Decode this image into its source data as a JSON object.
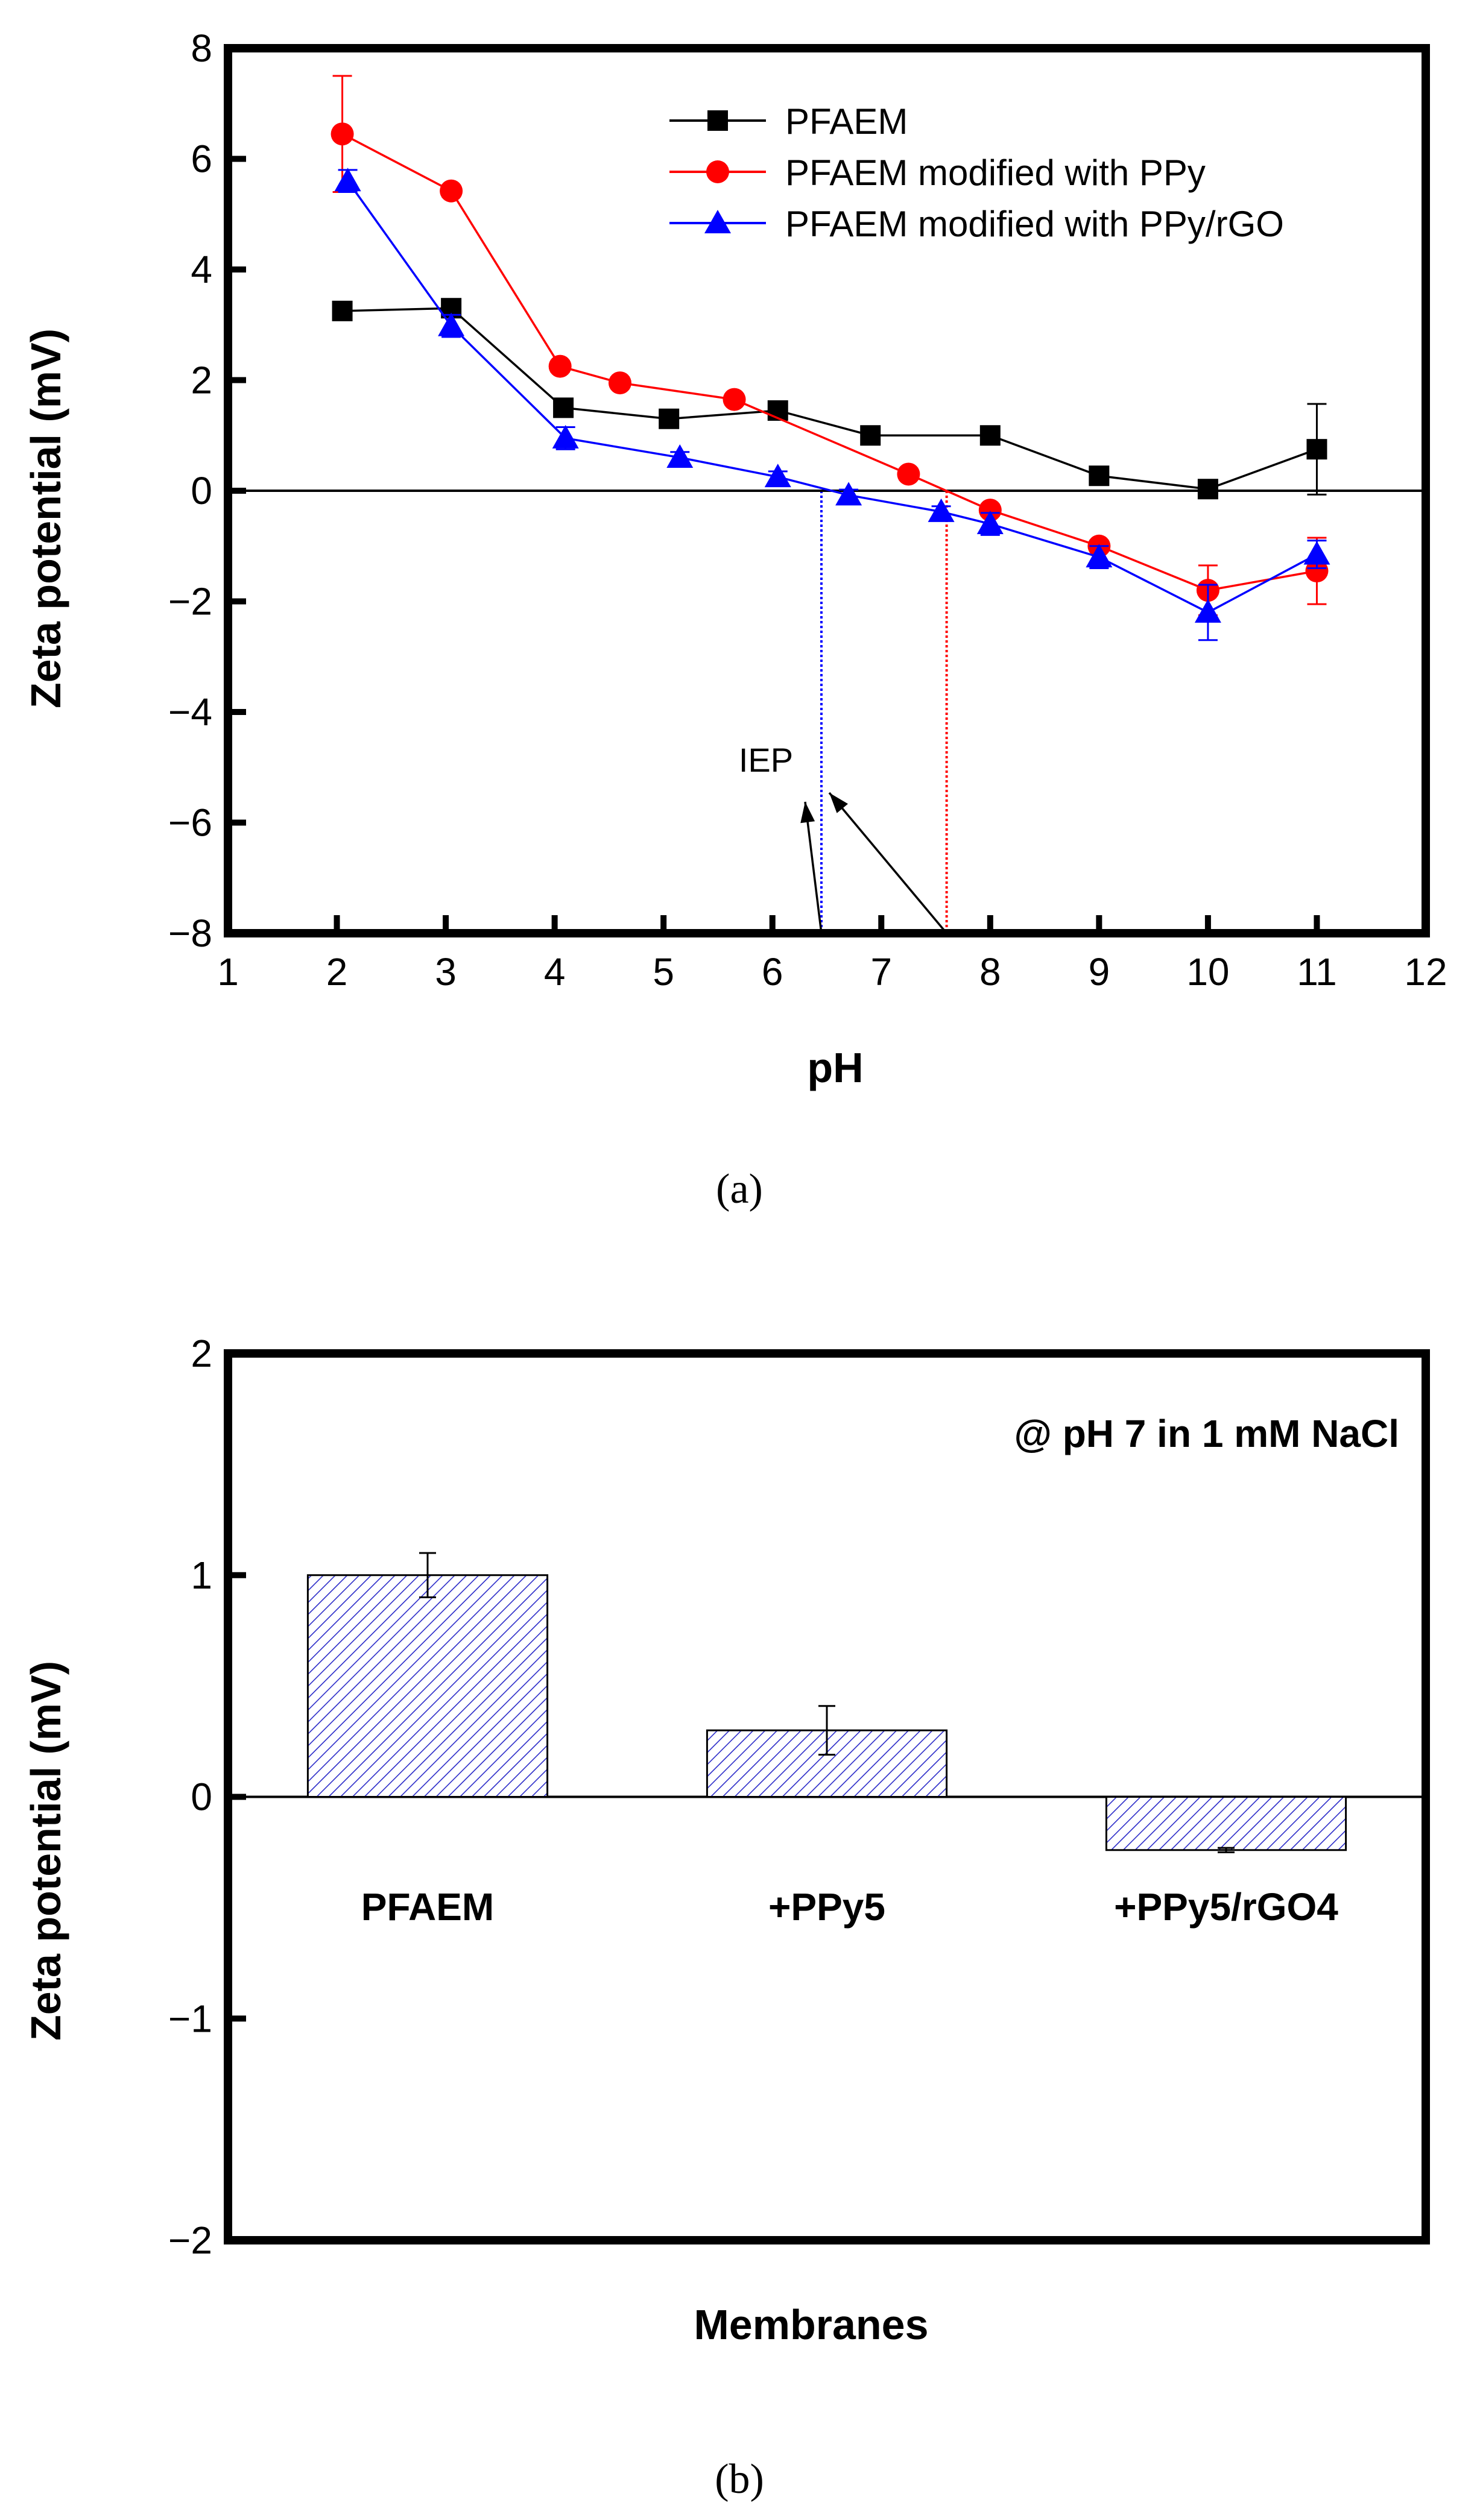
{
  "chart_data": [
    {
      "type": "line",
      "caption": "(a)",
      "xlabel": "pH",
      "ylabel": "Zeta potential (mV)",
      "xlim": [
        1,
        12
      ],
      "ylim": [
        -8,
        8
      ],
      "xticks": [
        1,
        2,
        3,
        4,
        5,
        6,
        7,
        8,
        9,
        10,
        11,
        12
      ],
      "yticks": [
        -8,
        -6,
        -4,
        -2,
        0,
        2,
        4,
        6,
        8
      ],
      "ytick_labels": [
        "−8",
        "−6",
        "−4",
        "−2",
        "0",
        "2",
        "4",
        "6",
        "8"
      ],
      "legend_position": "top-right",
      "annotation": "IEP",
      "iep_lines": [
        {
          "name": "PFAEM modified with PPy/rGO",
          "x": 6.45,
          "color": "#0000ff"
        },
        {
          "name": "PFAEM modified with PPy",
          "x": 7.6,
          "color": "#ff0000"
        }
      ],
      "series": [
        {
          "name": "PFAEM",
          "color": "#000000",
          "marker": "square",
          "x": [
            2.05,
            3.05,
            4.08,
            5.05,
            6.05,
            6.9,
            8.0,
            9.0,
            10.0,
            11.0
          ],
          "y": [
            3.25,
            3.3,
            1.5,
            1.3,
            1.45,
            1.0,
            1.0,
            0.27,
            0.03,
            0.75
          ],
          "err": [
            0.15,
            0.1,
            0.1,
            0.1,
            0.1,
            0.1,
            0.1,
            0.1,
            0.1,
            0.82
          ]
        },
        {
          "name": "PFAEM modified with PPy",
          "color": "#ff0000",
          "marker": "circle",
          "x": [
            2.05,
            3.05,
            4.05,
            4.6,
            5.65,
            7.25,
            8.0,
            9.0,
            10.0,
            11.0
          ],
          "y": [
            6.45,
            5.42,
            2.25,
            1.95,
            1.65,
            0.3,
            -0.35,
            -1.0,
            -1.8,
            -1.45
          ],
          "err": [
            1.05,
            0.1,
            0.1,
            0.1,
            0.1,
            0.1,
            0.1,
            0.1,
            0.45,
            0.6
          ]
        },
        {
          "name": "PFAEM modified with PPy/rGO",
          "color": "#0000ff",
          "marker": "triangle",
          "x": [
            2.1,
            3.05,
            4.1,
            5.15,
            6.05,
            6.7,
            7.55,
            8.0,
            9.0,
            10.0,
            11.0
          ],
          "y": [
            5.6,
            2.98,
            0.95,
            0.6,
            0.25,
            -0.08,
            -0.38,
            -0.6,
            -1.2,
            -2.2,
            -1.15
          ],
          "err": [
            0.2,
            0.2,
            0.2,
            0.1,
            0.1,
            0.1,
            0.1,
            0.2,
            0.2,
            0.5,
            0.25
          ]
        }
      ]
    },
    {
      "type": "bar",
      "caption": "(b)",
      "annotation": "@ pH 7 in 1 mM NaCl",
      "xlabel": "Membranes",
      "ylabel": "Zeta potential (mV)",
      "ylim": [
        -2,
        2
      ],
      "yticks": [
        -2,
        -1,
        0,
        1,
        2
      ],
      "ytick_labels": [
        "−2",
        "−1",
        "0",
        "1",
        "2"
      ],
      "categories": [
        "PFAEM",
        "+PPy5",
        "+PPy5/rGO4"
      ],
      "values": [
        1.0,
        0.3,
        -0.24
      ],
      "errors": [
        0.1,
        0.11,
        0.01
      ],
      "bar_color": "#2b2bc8",
      "fill": "hatched"
    }
  ]
}
